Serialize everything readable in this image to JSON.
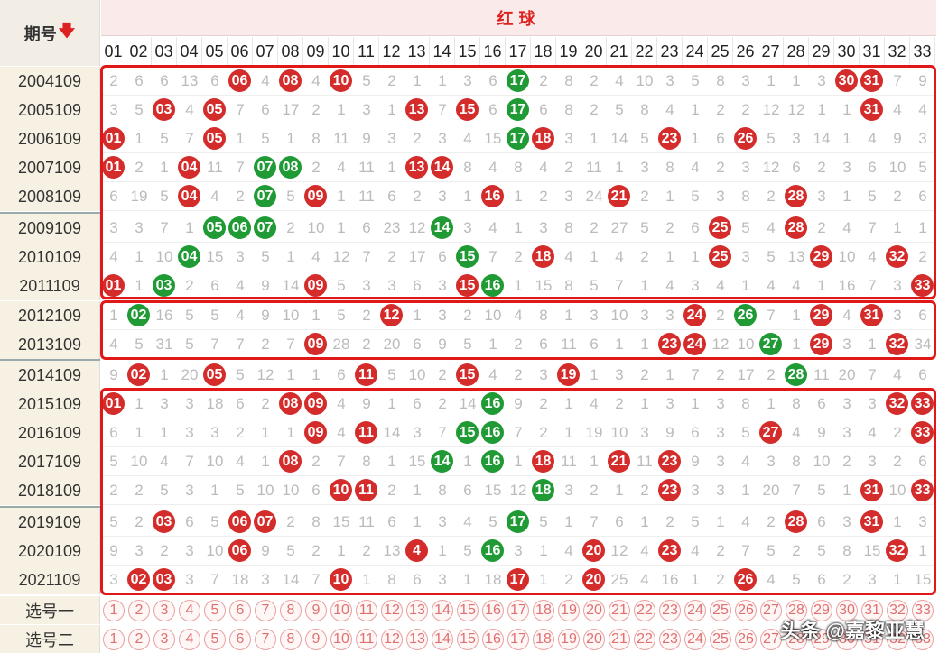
{
  "header": {
    "issue_label": "期号",
    "sort_icon": "down-arrow-icon",
    "red_ball_title": "红球"
  },
  "columns": [
    "01",
    "02",
    "03",
    "04",
    "05",
    "06",
    "07",
    "08",
    "09",
    "10",
    "11",
    "12",
    "13",
    "14",
    "15",
    "16",
    "17",
    "18",
    "19",
    "20",
    "21",
    "22",
    "23",
    "24",
    "25",
    "26",
    "27",
    "28",
    "29",
    "30",
    "31",
    "32",
    "33"
  ],
  "rows": [
    {
      "issue": "2004109",
      "cells": [
        "2",
        "6",
        "6",
        "13",
        "6",
        "06",
        "4",
        "08",
        "4",
        "10",
        "5",
        "2",
        "1",
        "1",
        "3",
        "6",
        "17",
        "2",
        "8",
        "2",
        "4",
        "10",
        "3",
        "5",
        "8",
        "3",
        "1",
        "1",
        "3",
        "30",
        "31",
        "7",
        "9"
      ],
      "red": [
        6,
        8,
        10,
        30,
        31
      ],
      "green": [
        17
      ]
    },
    {
      "issue": "2005109",
      "cells": [
        "3",
        "5",
        "03",
        "4",
        "05",
        "7",
        "6",
        "17",
        "2",
        "1",
        "3",
        "1",
        "13",
        "7",
        "15",
        "6",
        "17",
        "6",
        "8",
        "2",
        "5",
        "8",
        "4",
        "1",
        "2",
        "2",
        "12",
        "12",
        "1",
        "1",
        "31",
        "4",
        "4"
      ],
      "red": [
        3,
        5,
        13,
        15,
        31
      ],
      "green": [
        17
      ]
    },
    {
      "issue": "2006109",
      "cells": [
        "01",
        "1",
        "5",
        "7",
        "05",
        "1",
        "5",
        "1",
        "8",
        "11",
        "9",
        "3",
        "2",
        "3",
        "4",
        "15",
        "17",
        "18",
        "3",
        "1",
        "14",
        "5",
        "23",
        "1",
        "6",
        "26",
        "5",
        "3",
        "14",
        "1",
        "4",
        "9",
        "3"
      ],
      "red": [
        1,
        5,
        18,
        23,
        26
      ],
      "green": [
        17
      ]
    },
    {
      "issue": "2007109",
      "cells": [
        "01",
        "2",
        "1",
        "04",
        "11",
        "7",
        "07",
        "08",
        "2",
        "4",
        "11",
        "1",
        "13",
        "14",
        "8",
        "4",
        "8",
        "4",
        "2",
        "11",
        "1",
        "3",
        "8",
        "4",
        "2",
        "3",
        "12",
        "6",
        "2",
        "3",
        "6",
        "10",
        "5"
      ],
      "red": [
        1,
        4,
        13,
        14
      ],
      "green": [
        7,
        8
      ]
    },
    {
      "issue": "2008109",
      "cells": [
        "6",
        "19",
        "5",
        "04",
        "4",
        "2",
        "07",
        "5",
        "09",
        "1",
        "11",
        "6",
        "2",
        "3",
        "1",
        "16",
        "1",
        "2",
        "3",
        "24",
        "21",
        "2",
        "1",
        "5",
        "3",
        "8",
        "2",
        "28",
        "3",
        "1",
        "5",
        "2",
        "6"
      ],
      "red": [
        4,
        9,
        16,
        21,
        28
      ],
      "green": [
        7
      ]
    },
    {
      "issue": "2009109",
      "cells": [
        "3",
        "3",
        "7",
        "1",
        "05",
        "06",
        "07",
        "2",
        "10",
        "1",
        "6",
        "23",
        "12",
        "14",
        "3",
        "4",
        "1",
        "3",
        "8",
        "2",
        "27",
        "5",
        "2",
        "6",
        "25",
        "5",
        "4",
        "28",
        "2",
        "4",
        "7",
        "1",
        "1"
      ],
      "red": [
        25,
        28
      ],
      "green": [
        5,
        6,
        7,
        14
      ]
    },
    {
      "issue": "2010109",
      "cells": [
        "4",
        "1",
        "10",
        "04",
        "15",
        "3",
        "5",
        "1",
        "4",
        "12",
        "7",
        "2",
        "17",
        "6",
        "15",
        "7",
        "2",
        "18",
        "4",
        "1",
        "4",
        "2",
        "1",
        "1",
        "25",
        "3",
        "5",
        "13",
        "29",
        "10",
        "4",
        "32",
        "2"
      ],
      "red": [
        18,
        25,
        29,
        32
      ],
      "green": [
        4,
        15
      ]
    },
    {
      "issue": "2011109",
      "cells": [
        "01",
        "1",
        "03",
        "2",
        "6",
        "4",
        "9",
        "14",
        "09",
        "5",
        "3",
        "3",
        "6",
        "3",
        "15",
        "16",
        "1",
        "15",
        "8",
        "5",
        "7",
        "1",
        "4",
        "3",
        "4",
        "1",
        "4",
        "4",
        "1",
        "16",
        "7",
        "3",
        "33"
      ],
      "red": [
        1,
        9,
        15,
        33
      ],
      "green": [
        3,
        16
      ]
    },
    {
      "issue": "2012109",
      "cells": [
        "1",
        "02",
        "16",
        "5",
        "5",
        "4",
        "9",
        "10",
        "1",
        "5",
        "2",
        "12",
        "1",
        "3",
        "2",
        "10",
        "4",
        "8",
        "1",
        "3",
        "10",
        "3",
        "3",
        "24",
        "2",
        "26",
        "7",
        "1",
        "29",
        "4",
        "31",
        "3",
        "6"
      ],
      "red": [
        12,
        24,
        29,
        31
      ],
      "green": [
        2,
        26
      ]
    },
    {
      "issue": "2013109",
      "cells": [
        "4",
        "5",
        "31",
        "5",
        "7",
        "7",
        "2",
        "7",
        "09",
        "28",
        "2",
        "20",
        "6",
        "9",
        "5",
        "1",
        "2",
        "6",
        "11",
        "6",
        "1",
        "1",
        "23",
        "24",
        "12",
        "10",
        "27",
        "1",
        "29",
        "3",
        "1",
        "32",
        "34"
      ],
      "red": [
        9,
        23,
        24,
        29,
        32
      ],
      "green": [
        27
      ]
    },
    {
      "issue": "2014109",
      "cells": [
        "9",
        "02",
        "1",
        "20",
        "05",
        "5",
        "12",
        "1",
        "1",
        "6",
        "11",
        "5",
        "10",
        "2",
        "15",
        "4",
        "2",
        "3",
        "19",
        "1",
        "3",
        "2",
        "1",
        "7",
        "2",
        "17",
        "2",
        "28",
        "11",
        "20",
        "7",
        "4",
        "6"
      ],
      "red": [
        2,
        5,
        11,
        15,
        19
      ],
      "green": [
        28
      ]
    },
    {
      "issue": "2015109",
      "cells": [
        "01",
        "1",
        "3",
        "3",
        "18",
        "6",
        "2",
        "08",
        "09",
        "4",
        "9",
        "1",
        "6",
        "2",
        "14",
        "16",
        "9",
        "2",
        "1",
        "4",
        "2",
        "1",
        "3",
        "1",
        "3",
        "8",
        "1",
        "8",
        "6",
        "3",
        "3",
        "32",
        "33"
      ],
      "red": [
        1,
        8,
        9,
        32,
        33
      ],
      "green": [
        16
      ]
    },
    {
      "issue": "2016109",
      "cells": [
        "6",
        "1",
        "1",
        "3",
        "3",
        "2",
        "1",
        "1",
        "09",
        "4",
        "11",
        "14",
        "3",
        "7",
        "15",
        "16",
        "7",
        "2",
        "1",
        "19",
        "10",
        "3",
        "9",
        "6",
        "3",
        "5",
        "27",
        "4",
        "9",
        "3",
        "4",
        "2",
        "33"
      ],
      "red": [
        9,
        11,
        27,
        33
      ],
      "green": [
        15,
        16
      ]
    },
    {
      "issue": "2017109",
      "cells": [
        "5",
        "10",
        "4",
        "7",
        "10",
        "4",
        "1",
        "08",
        "2",
        "7",
        "8",
        "1",
        "15",
        "14",
        "1",
        "16",
        "1",
        "18",
        "11",
        "1",
        "21",
        "11",
        "23",
        "9",
        "3",
        "4",
        "3",
        "8",
        "10",
        "2",
        "3",
        "2",
        "6"
      ],
      "red": [
        8,
        18,
        21,
        23
      ],
      "green": [
        14,
        16
      ]
    },
    {
      "issue": "2018109",
      "cells": [
        "2",
        "2",
        "5",
        "3",
        "1",
        "5",
        "10",
        "10",
        "6",
        "10",
        "11",
        "2",
        "1",
        "8",
        "6",
        "15",
        "12",
        "18",
        "3",
        "2",
        "1",
        "2",
        "23",
        "3",
        "3",
        "1",
        "20",
        "7",
        "5",
        "1",
        "31",
        "10",
        "33"
      ],
      "red": [
        10,
        11,
        23,
        31,
        33
      ],
      "green": [
        18
      ]
    },
    {
      "issue": "2019109",
      "cells": [
        "5",
        "2",
        "03",
        "6",
        "5",
        "06",
        "07",
        "2",
        "8",
        "15",
        "11",
        "6",
        "1",
        "3",
        "4",
        "5",
        "17",
        "5",
        "1",
        "7",
        "6",
        "1",
        "2",
        "5",
        "1",
        "4",
        "2",
        "28",
        "6",
        "3",
        "31",
        "1",
        "3"
      ],
      "red": [
        3,
        6,
        7,
        28,
        31
      ],
      "green": [
        17
      ]
    },
    {
      "issue": "2020109",
      "cells": [
        "9",
        "3",
        "2",
        "3",
        "10",
        "06",
        "9",
        "5",
        "2",
        "1",
        "2",
        "13",
        "4",
        "1",
        "5",
        "16",
        "3",
        "1",
        "4",
        "20",
        "12",
        "4",
        "23",
        "4",
        "2",
        "7",
        "5",
        "2",
        "5",
        "8",
        "15",
        "32",
        "1"
      ],
      "red": [
        6,
        13,
        20,
        23,
        32
      ],
      "green": [
        16
      ]
    },
    {
      "issue": "2021109",
      "cells": [
        "3",
        "02",
        "03",
        "3",
        "7",
        "18",
        "3",
        "14",
        "7",
        "10",
        "1",
        "8",
        "6",
        "3",
        "1",
        "18",
        "17",
        "1",
        "2",
        "20",
        "25",
        "4",
        "16",
        "1",
        "2",
        "26",
        "4",
        "5",
        "6",
        "2",
        "3",
        "1",
        "15"
      ],
      "red": [
        2,
        3,
        10,
        17,
        20,
        26
      ],
      "green": []
    }
  ],
  "picks": [
    {
      "label": "选号一",
      "nums": [
        "1",
        "2",
        "3",
        "4",
        "5",
        "6",
        "7",
        "8",
        "9",
        "10",
        "11",
        "12",
        "13",
        "14",
        "15",
        "16",
        "17",
        "18",
        "19",
        "20",
        "21",
        "22",
        "23",
        "24",
        "25",
        "26",
        "27",
        "28",
        "29",
        "30",
        "31",
        "32",
        "33"
      ]
    },
    {
      "label": "选号二",
      "nums": [
        "1",
        "2",
        "3",
        "4",
        "5",
        "6",
        "7",
        "8",
        "9",
        "10",
        "11",
        "12",
        "13",
        "14",
        "15",
        "16",
        "17",
        "18",
        "19",
        "20",
        "21",
        "22",
        "23",
        "24",
        "25",
        "26",
        "27",
        "28",
        "29",
        "30",
        "31",
        "32",
        "33"
      ]
    }
  ],
  "colors": {
    "red_ball": "#d42b2b",
    "green_ball": "#1f9a34",
    "frame": "#e01818"
  },
  "watermark": "头条 @嘉黎亚慧"
}
